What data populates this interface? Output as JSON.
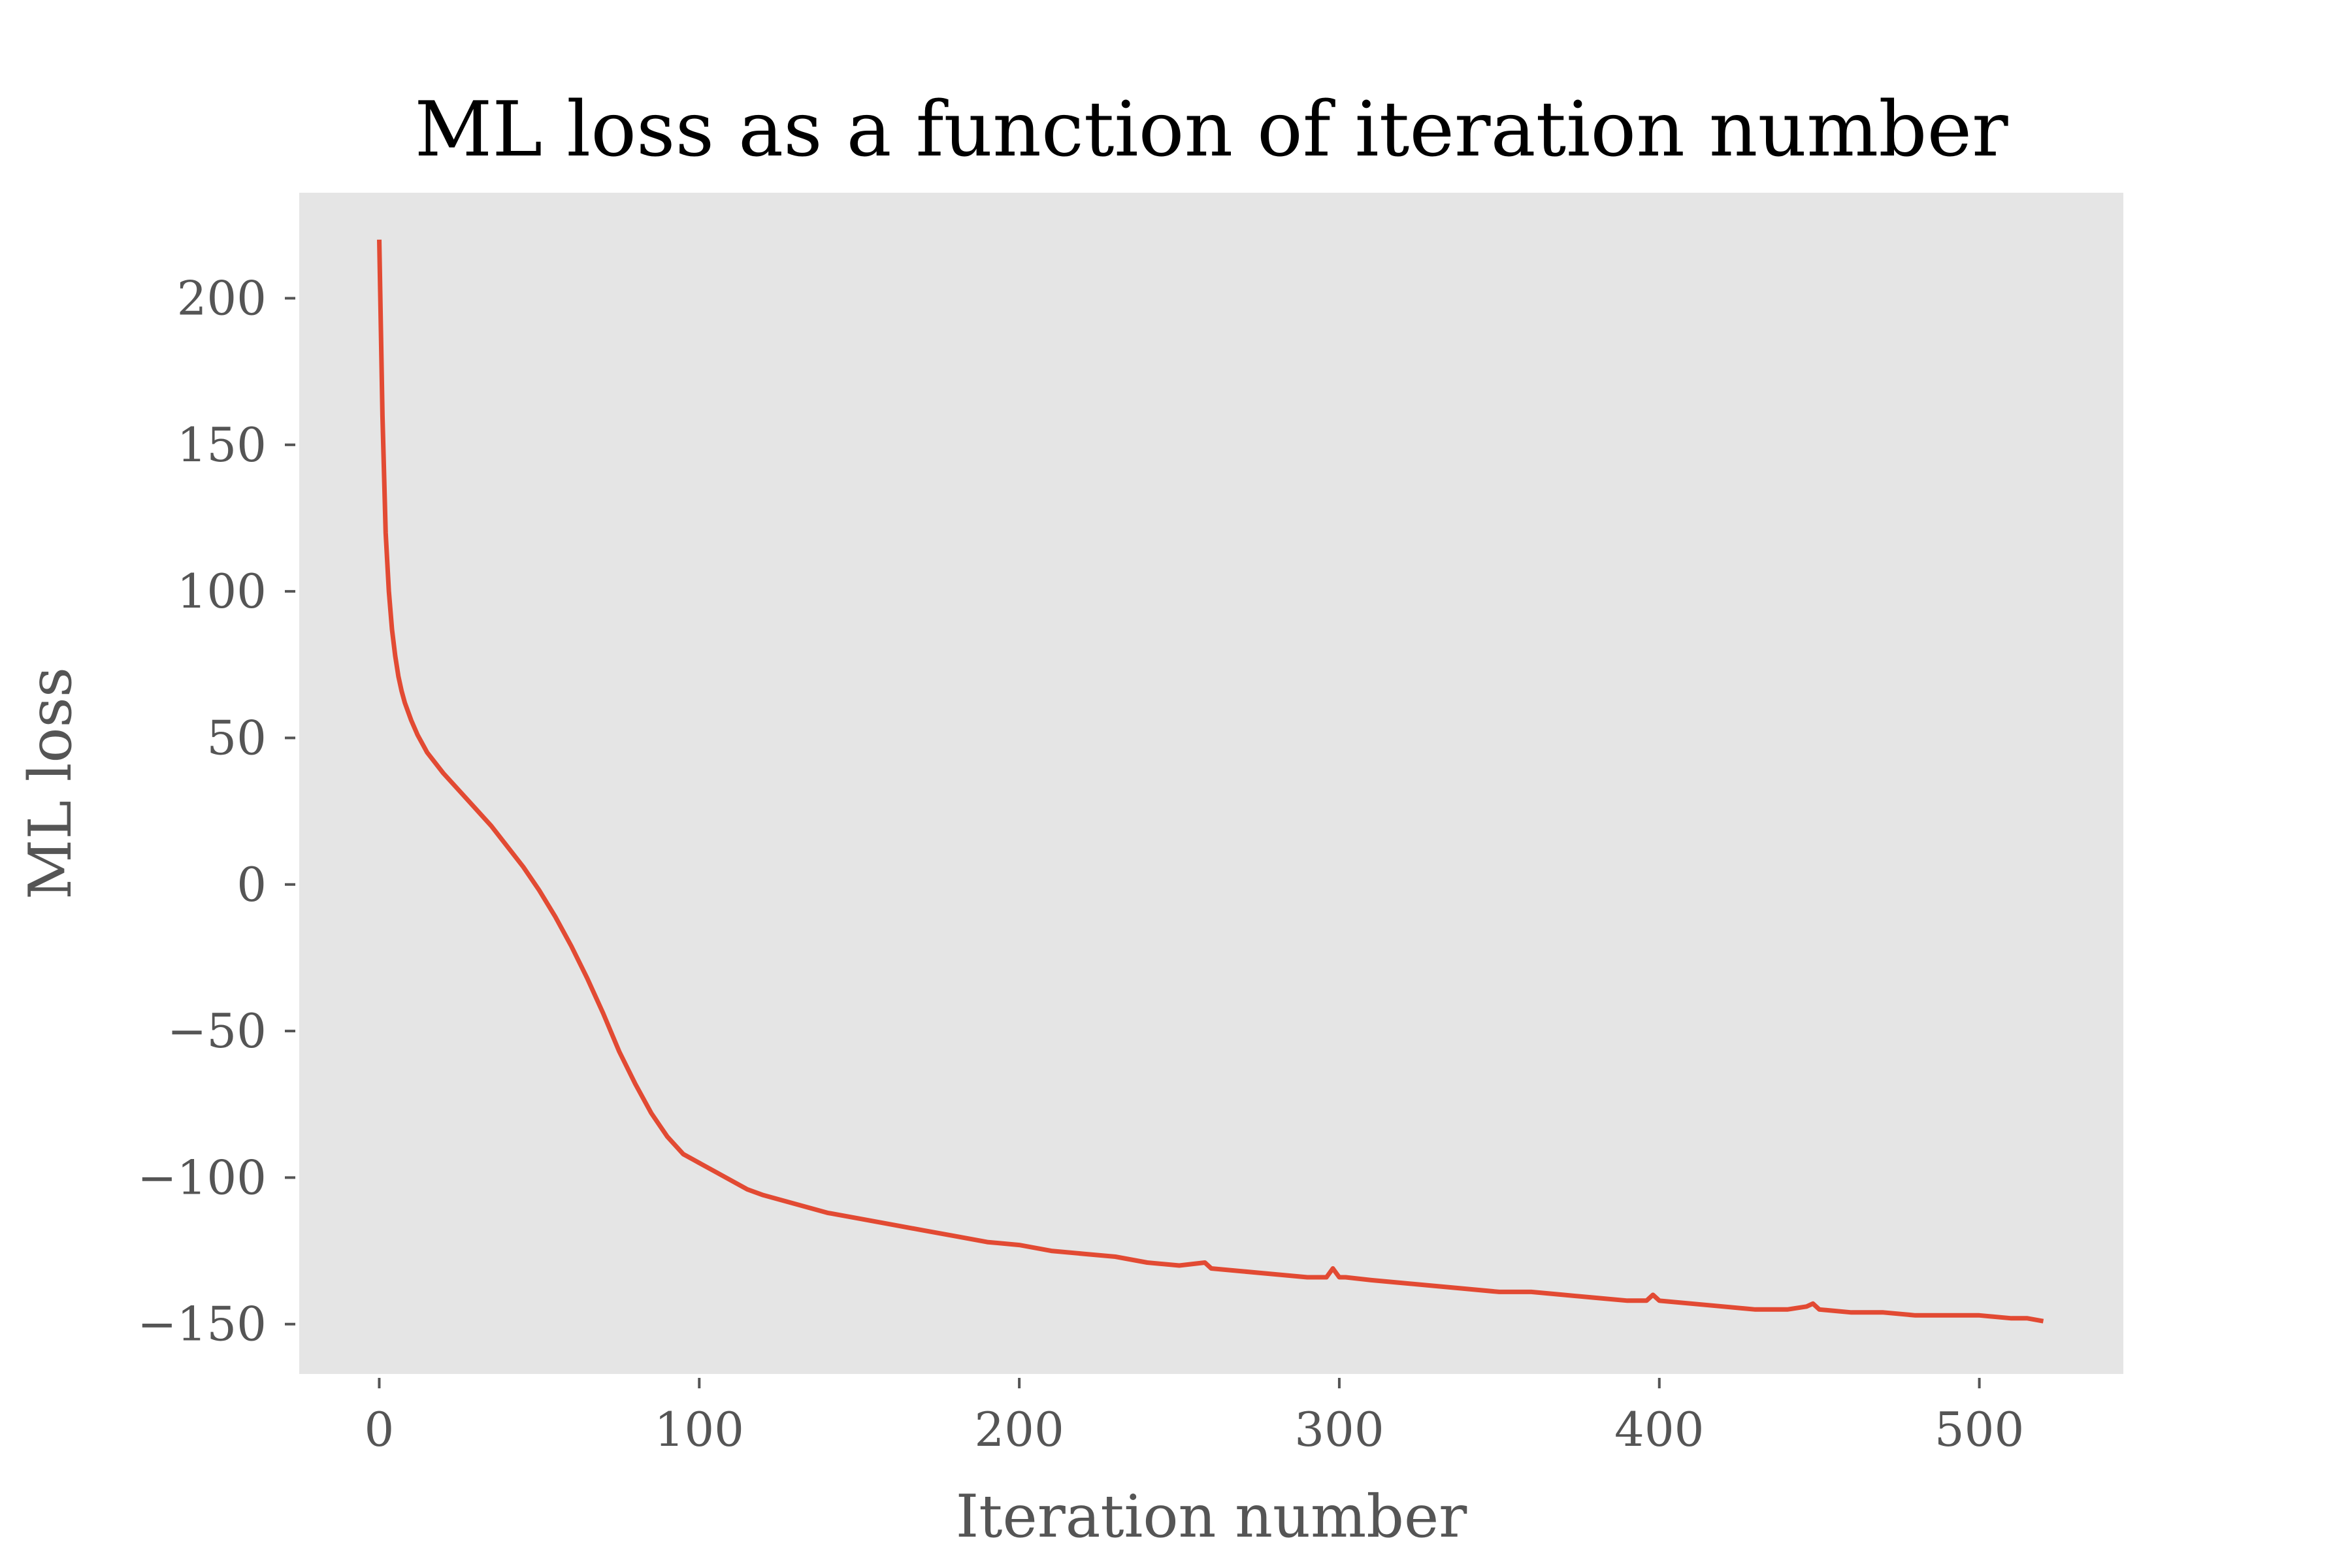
{
  "chart_data": {
    "type": "line",
    "title": "ML loss as a function of iteration number",
    "xlabel": "Iteration number",
    "ylabel": "ML loss",
    "xlim": [
      -25,
      545
    ],
    "ylim": [
      -167,
      236
    ],
    "xticks": [
      0,
      100,
      200,
      300,
      400,
      500
    ],
    "yticks": [
      200,
      150,
      100,
      50,
      0,
      -50,
      -100,
      -150
    ],
    "xtick_labels": [
      "0",
      "100",
      "200",
      "300",
      "400",
      "500"
    ],
    "ytick_labels": [
      "200",
      "150",
      "100",
      "50",
      "0",
      "−50",
      "−100",
      "−150"
    ],
    "grid": false,
    "background_color": "#e5e5e5",
    "series": [
      {
        "color": "#e24a33",
        "x": [
          0,
          1,
          2,
          3,
          4,
          5,
          6,
          7,
          8,
          10,
          12,
          15,
          20,
          25,
          30,
          35,
          40,
          45,
          50,
          55,
          60,
          65,
          70,
          75,
          80,
          85,
          90,
          95,
          100,
          105,
          110,
          115,
          120,
          130,
          140,
          150,
          160,
          170,
          180,
          190,
          200,
          210,
          220,
          230,
          240,
          250,
          258,
          260,
          270,
          280,
          290,
          296,
          298,
          300,
          302,
          310,
          320,
          330,
          340,
          350,
          360,
          370,
          380,
          390,
          396,
          398,
          400,
          410,
          420,
          430,
          440,
          446,
          448,
          450,
          460,
          470,
          480,
          490,
          500,
          510,
          515,
          520
        ],
        "y": [
          220,
          160,
          120,
          100,
          87,
          78,
          71,
          66,
          62,
          56,
          51,
          45,
          38,
          32,
          26,
          20,
          13,
          6,
          -2,
          -11,
          -21,
          -32,
          -44,
          -57,
          -68,
          -78,
          -86,
          -92,
          -95,
          -98,
          -101,
          -104,
          -106,
          -109,
          -112,
          -114,
          -116,
          -118,
          -120,
          -122,
          -123,
          -125,
          -126,
          -127,
          -129,
          -130,
          -129,
          -131,
          -132,
          -133,
          -134,
          -134,
          -131,
          -134,
          -134,
          -135,
          -136,
          -137,
          -138,
          -139,
          -139,
          -140,
          -141,
          -142,
          -142,
          -140,
          -142,
          -143,
          -144,
          -145,
          -145,
          -144,
          -143,
          -145,
          -146,
          -146,
          -147,
          -147,
          -147,
          -148,
          -148,
          -149
        ]
      }
    ]
  }
}
